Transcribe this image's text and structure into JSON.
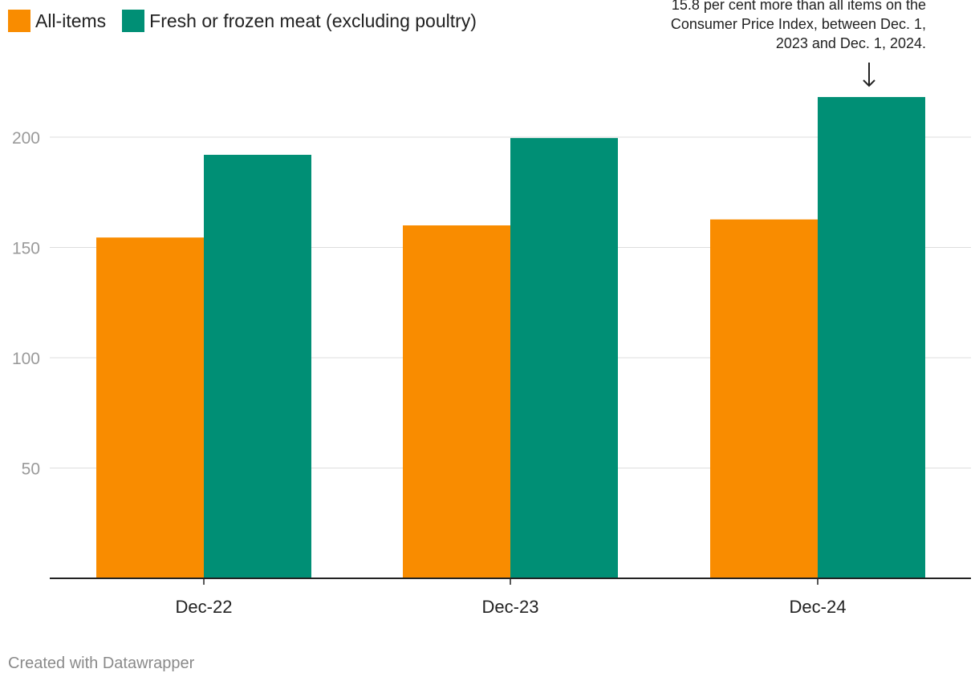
{
  "legend": [
    {
      "label": "All-items",
      "color": "#f98c00"
    },
    {
      "label": "Fresh or frozen meat (excluding poultry)",
      "color": "#008f75"
    }
  ],
  "annotation": {
    "lines": [
      "15.8 per cent more than all items on the",
      "Consumer Price Index, between Dec. 1,",
      "2023 and Dec. 1, 2024."
    ]
  },
  "credit": "Created with Datawrapper",
  "chart_data": {
    "type": "bar",
    "categories": [
      "Dec-22",
      "Dec-23",
      "Dec-24"
    ],
    "series": [
      {
        "name": "All-items",
        "values": [
          154.5,
          160.0,
          162.7
        ],
        "color": "#f98c00"
      },
      {
        "name": "Fresh or frozen meat (excluding poultry)",
        "values": [
          192.0,
          199.6,
          218.2
        ],
        "color": "#008f75"
      }
    ],
    "ylim": [
      0,
      220
    ],
    "yticks": [
      50,
      100,
      150,
      200
    ],
    "grid": true,
    "legend_position": "top-left"
  }
}
